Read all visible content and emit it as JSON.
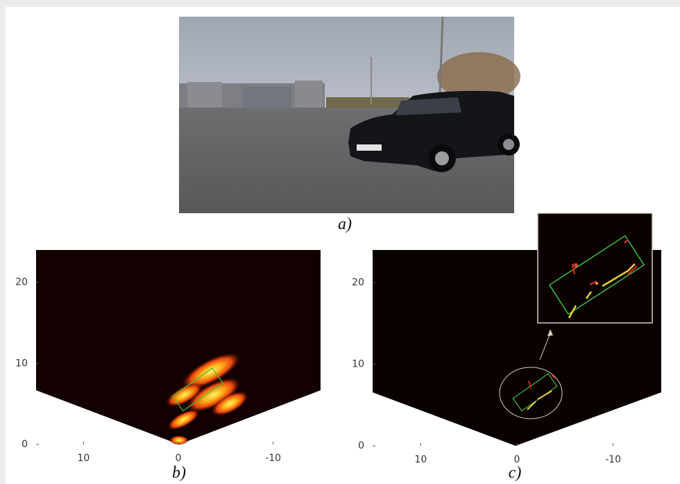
{
  "figure": {
    "panels": [
      {
        "caption": "a)"
      },
      {
        "caption": "b)",
        "xlim": [
          15,
          -15
        ],
        "ylim": [
          0,
          24
        ],
        "xticks": [
          10,
          0,
          -10
        ],
        "yticks": [
          0,
          10,
          20
        ]
      },
      {
        "caption": "c)",
        "xlim": [
          15,
          -15
        ],
        "ylim": [
          0,
          24
        ],
        "xticks": [
          10,
          0,
          -10
        ],
        "yticks": [
          0,
          10,
          20
        ]
      }
    ]
  }
}
